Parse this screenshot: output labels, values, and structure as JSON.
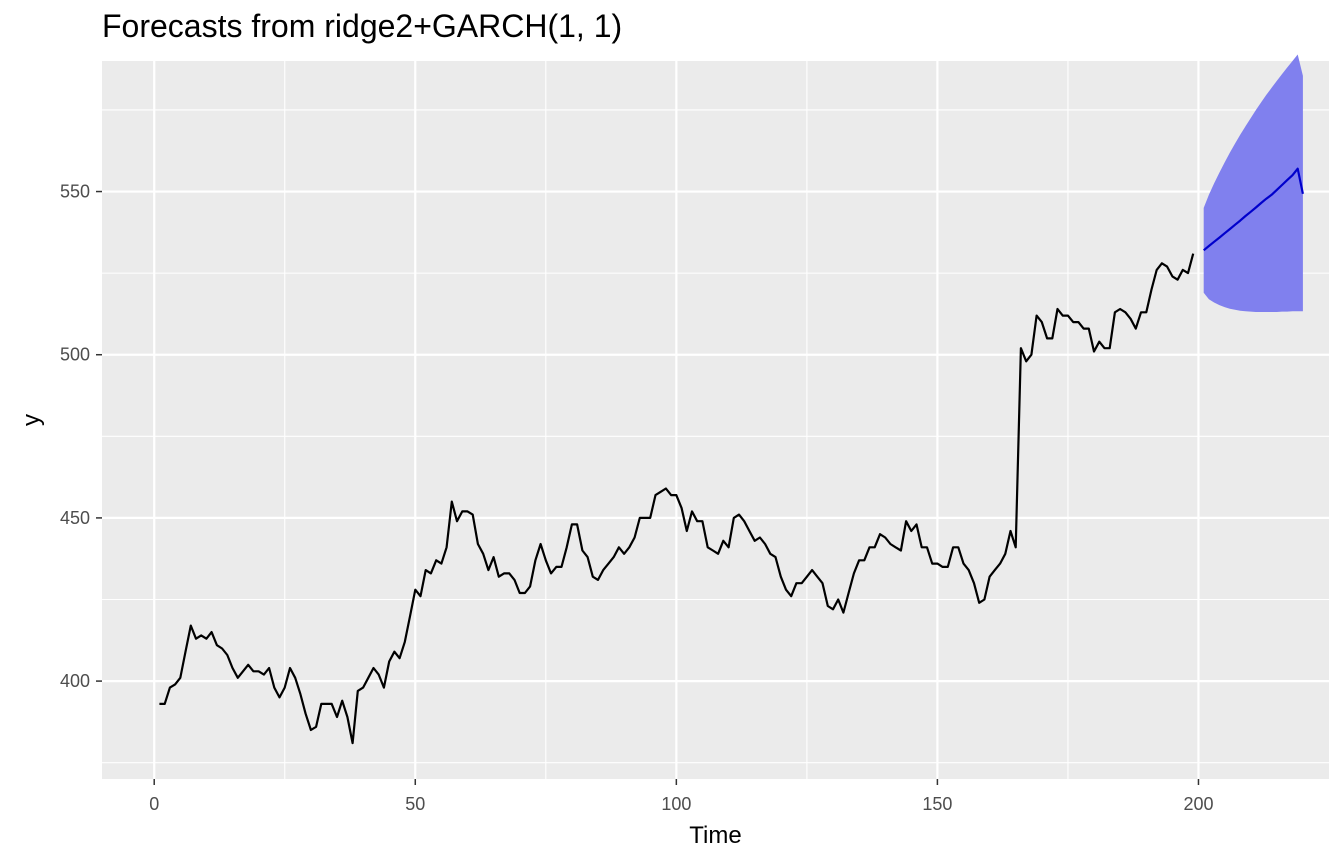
{
  "chart_data": {
    "type": "line",
    "title": "Forecasts from ridge2+GARCH(1, 1)",
    "xlabel": "Time",
    "ylabel": "y",
    "xlim": [
      -10,
      225
    ],
    "ylim": [
      370,
      590
    ],
    "x_ticks": [
      0,
      50,
      100,
      150,
      200
    ],
    "y_ticks": [
      400,
      450,
      500,
      550
    ],
    "grid": true,
    "legend": "none",
    "colors": {
      "panel_background": "#ebebeb",
      "grid": "#ffffff",
      "history_line": "#000000",
      "forecast_line": "#0000cc",
      "interval_fill": "#8080ee"
    },
    "series": [
      {
        "role": "history",
        "x_start": 1,
        "values": [
          393,
          393,
          398,
          399,
          401,
          409,
          417,
          413,
          414,
          413,
          415,
          411,
          410,
          408,
          404,
          401,
          403,
          405,
          403,
          403,
          402,
          404,
          398,
          395,
          398,
          404,
          401,
          396,
          390,
          385,
          386,
          393,
          393,
          393,
          389,
          394,
          389,
          381,
          397,
          398,
          401,
          404,
          402,
          398,
          406,
          409,
          407,
          412,
          420,
          428,
          426,
          434,
          433,
          437,
          436,
          441,
          455,
          449,
          452,
          452,
          451,
          442,
          439,
          434,
          438,
          432,
          433,
          433,
          431,
          427,
          427,
          429,
          437,
          442,
          437,
          433,
          435,
          435,
          441,
          448,
          448,
          440,
          438,
          432,
          431,
          434,
          436,
          438,
          441,
          439,
          441,
          444,
          450,
          450,
          450,
          457,
          458,
          459,
          457,
          457,
          453,
          446,
          452,
          449,
          449,
          441,
          440,
          439,
          443,
          441,
          450,
          451,
          449,
          446,
          443,
          444,
          442,
          439,
          438,
          432,
          428,
          426,
          430,
          430,
          432,
          434,
          432,
          430,
          423,
          422,
          425,
          421,
          427,
          433,
          437,
          437,
          441,
          441,
          445,
          444,
          442,
          441,
          440,
          449,
          446,
          448,
          441,
          441,
          436,
          436,
          435,
          435,
          441,
          441,
          436,
          434,
          430,
          424,
          425,
          432,
          434,
          436,
          439,
          446,
          441,
          502,
          498,
          500,
          512,
          510,
          505,
          505,
          514,
          512,
          512,
          510,
          510,
          508,
          508,
          501,
          504,
          502,
          502,
          513,
          514,
          513,
          511,
          508,
          513,
          513,
          520,
          526,
          528,
          527,
          524,
          523,
          526,
          525,
          531
        ]
      },
      {
        "role": "forecast",
        "x_start": 201,
        "values": [
          532,
          533.3,
          534.6,
          535.9,
          537.2,
          538.5,
          539.8,
          541.1,
          542.5,
          543.8,
          545.1,
          546.5,
          547.8,
          549,
          550.5,
          552,
          553.5,
          555,
          557,
          549.3
        ]
      }
    ],
    "interval": {
      "x_start": 201,
      "upper": [
        545,
        549,
        552.5,
        555.8,
        558.9,
        561.9,
        564.7,
        567.4,
        570,
        572.5,
        575,
        577.3,
        579.6,
        581.8,
        583.9,
        586,
        588,
        590,
        592,
        585.5
      ],
      "lower": [
        519,
        517,
        516,
        515.2,
        514.6,
        514.1,
        513.8,
        513.5,
        513.3,
        513.2,
        513.1,
        513.1,
        513.1,
        513.1,
        513.1,
        513.2,
        513.2,
        513.3,
        513.3,
        513.3
      ]
    }
  }
}
